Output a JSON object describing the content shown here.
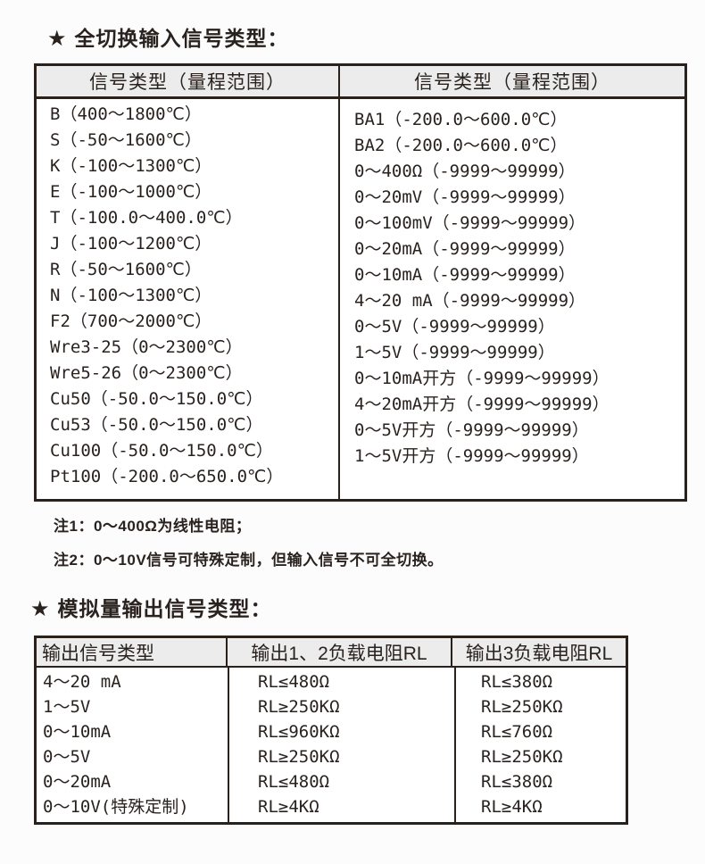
{
  "colors": {
    "page-bg": "#fdfcfc",
    "text": "#29221f",
    "border": "#2a211c",
    "header-bg": "#ebeceb"
  },
  "section1": {
    "star": "★",
    "title": "全切换输入信号类型：",
    "table": {
      "header_left": "信号类型（量程范围）",
      "header_right": "信号类型（量程范围）",
      "left_items": [
        "B（400～1800℃）",
        "S（-50～1600℃）",
        "K（-100～1300℃）",
        "E（-100～1000℃）",
        "T（-100.0～400.0℃）",
        "J（-100～1200℃）",
        "R（-50～1600℃）",
        "N（-100～1300℃）",
        "F2（700～2000℃）",
        "Wre3-25（0～2300℃）",
        "Wre5-26（0～2300℃）",
        "Cu50（-50.0～150.0℃）",
        "Cu53（-50.0～150.0℃）",
        "Cu100（-50.0～150.0℃）",
        "Pt100（-200.0～650.0℃）"
      ],
      "right_items": [
        "BA1（-200.0～600.0℃）",
        "BA2（-200.0～600.0℃）",
        "0～400Ω（-9999～99999）",
        "0～20mV（-9999～99999）",
        "0～100mV（-9999～99999）",
        "0～20mA（-9999～99999）",
        "0～10mA（-9999～99999）",
        "4～20 mA（-9999～99999）",
        "0～5V（-9999～99999）",
        "1～5V（-9999～99999）",
        "0～10mA开方（-9999～99999）",
        "4～20mA开方（-9999～99999）",
        "0～5V开方（-9999～99999）",
        "1～5V开方（-9999～99999）"
      ]
    },
    "notes": [
      "注1：0～400Ω为线性电阻；",
      "注2：0～10V信号可特殊定制，但输入信号不可全切换。"
    ]
  },
  "section2": {
    "star": "★",
    "title": "模拟量输出信号类型：",
    "table": {
      "headers": [
        "输出信号类型",
        "输出1、2负载电阻RL",
        "输出3负载电阻RL"
      ],
      "rows": [
        [
          "4～20 mA",
          "RL≤480Ω",
          "RL≤380Ω"
        ],
        [
          "1～5V",
          "RL≥250KΩ",
          "RL≥250KΩ"
        ],
        [
          "0～10mA",
          "RL≤960KΩ",
          "RL≤760Ω"
        ],
        [
          "0～5V",
          "RL≥250KΩ",
          "RL≥250KΩ"
        ],
        [
          "0～20mA",
          "RL≤480Ω",
          "RL≤380Ω"
        ],
        [
          "0～10V(特殊定制)",
          "RL≥4KΩ",
          "RL≥4KΩ"
        ]
      ]
    }
  }
}
